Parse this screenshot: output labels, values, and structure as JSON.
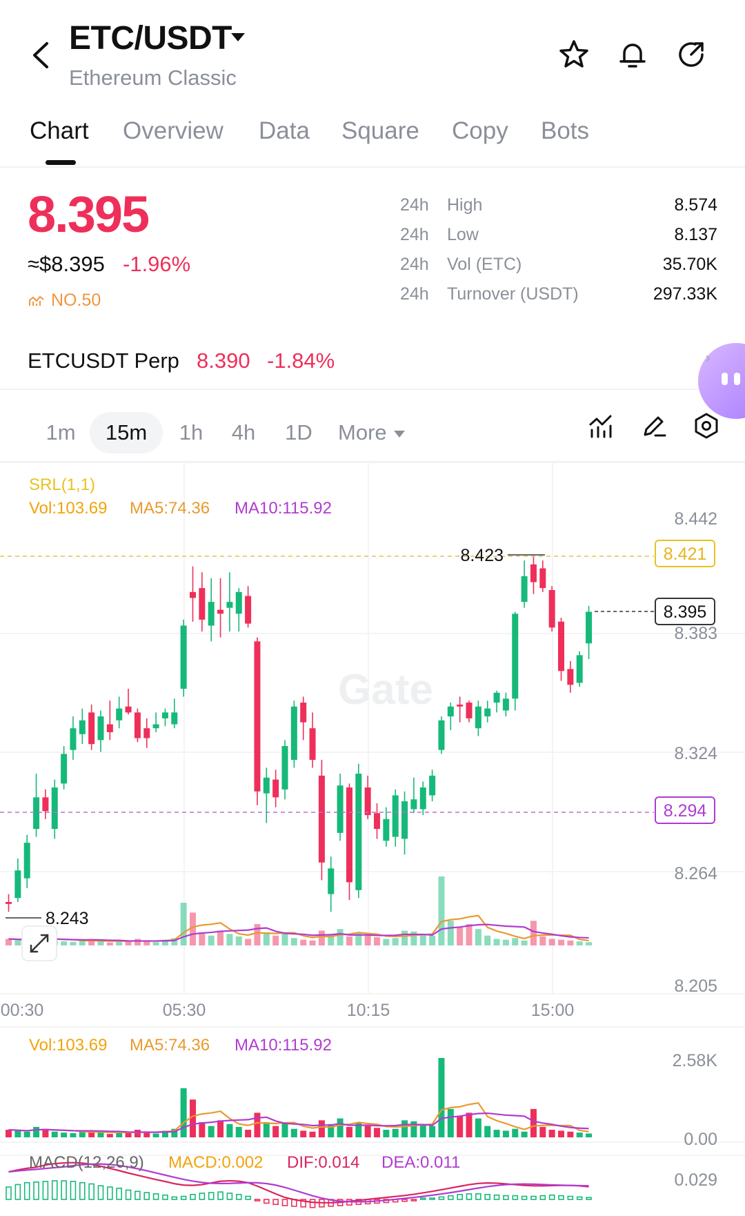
{
  "header": {
    "pair": "ETC/USDT",
    "subtitle": "Ethereum Classic",
    "icons": [
      "back-icon",
      "star-icon",
      "bell-icon",
      "share-icon"
    ]
  },
  "tabs": [
    {
      "label": "Chart",
      "active": true
    },
    {
      "label": "Overview"
    },
    {
      "label": "Data"
    },
    {
      "label": "Square"
    },
    {
      "label": "Copy"
    },
    {
      "label": "Bots"
    }
  ],
  "ticker": {
    "last_price": "8.395",
    "approx_usd": "≈$8.395",
    "change_pct": "-1.96%",
    "rank": "NO.50"
  },
  "stats": [
    {
      "prefix": "24h",
      "label": "High",
      "value": "8.574"
    },
    {
      "prefix": "24h",
      "label": "Low",
      "value": "8.137"
    },
    {
      "prefix": "24h",
      "label": "Vol (ETC)",
      "value": "35.70K"
    },
    {
      "prefix": "24h",
      "label": "Turnover (USDT)",
      "value": "297.33K"
    }
  ],
  "perp": {
    "name": "ETCUSDT Perp",
    "price": "8.390",
    "change": "-1.84%"
  },
  "intervals": [
    {
      "label": "1m"
    },
    {
      "label": "15m",
      "active": true
    },
    {
      "label": "1h"
    },
    {
      "label": "4h"
    },
    {
      "label": "1D"
    },
    {
      "label": "More"
    }
  ],
  "toolbar_icons": [
    "indicator-icon",
    "draw-icon",
    "settings-icon"
  ],
  "legends": {
    "srl": "SRL(1,1)",
    "vol": "Vol:103.69",
    "ma5": "MA5:74.36",
    "ma10": "MA10:115.92",
    "macd": "MACD(12,26,9)",
    "macd_val": "MACD:0.002",
    "dif": "DIF:0.014",
    "dea": "DEA:0.011"
  },
  "colors": {
    "up": "#16b979",
    "down": "#ee2f5a",
    "accent": "#ee2f5a",
    "srl": "#e8c21e",
    "ma10": "#b03bd1"
  },
  "chart_data": {
    "type": "candlestick",
    "price_axis_ticks": [
      "8.442",
      "8.383",
      "8.324",
      "8.264",
      "8.205"
    ],
    "time_axis_ticks": [
      "00:30",
      "05:30",
      "10:15",
      "15:00"
    ],
    "current_price_tag": "8.395",
    "srl_upper_tag": "8.421",
    "srl_lower_tag": "8.294",
    "high_marker": "8.423",
    "low_marker": "8.243",
    "volume_axis_ticks": [
      "2.58K",
      "0.00"
    ],
    "macd_axis_tick": "0.029",
    "watermark": "Gate",
    "candles": [
      {
        "o": 8.248,
        "h": 8.252,
        "l": 8.243,
        "c": 8.247
      },
      {
        "o": 8.25,
        "h": 8.27,
        "l": 8.248,
        "c": 8.264
      },
      {
        "o": 8.26,
        "h": 8.282,
        "l": 8.255,
        "c": 8.278
      },
      {
        "o": 8.285,
        "h": 8.313,
        "l": 8.281,
        "c": 8.301
      },
      {
        "o": 8.301,
        "h": 8.305,
        "l": 8.29,
        "c": 8.294
      },
      {
        "o": 8.285,
        "h": 8.31,
        "l": 8.28,
        "c": 8.306
      },
      {
        "o": 8.308,
        "h": 8.327,
        "l": 8.305,
        "c": 8.323
      },
      {
        "o": 8.325,
        "h": 8.342,
        "l": 8.32,
        "c": 8.336
      },
      {
        "o": 8.333,
        "h": 8.346,
        "l": 8.328,
        "c": 8.34
      },
      {
        "o": 8.344,
        "h": 8.348,
        "l": 8.325,
        "c": 8.328
      },
      {
        "o": 8.33,
        "h": 8.345,
        "l": 8.324,
        "c": 8.342
      },
      {
        "o": 8.338,
        "h": 8.35,
        "l": 8.33,
        "c": 8.334
      },
      {
        "o": 8.34,
        "h": 8.352,
        "l": 8.336,
        "c": 8.346
      },
      {
        "o": 8.347,
        "h": 8.356,
        "l": 8.343,
        "c": 8.344
      },
      {
        "o": 8.344,
        "h": 8.346,
        "l": 8.329,
        "c": 8.331
      },
      {
        "o": 8.336,
        "h": 8.341,
        "l": 8.326,
        "c": 8.331
      },
      {
        "o": 8.336,
        "h": 8.344,
        "l": 8.334,
        "c": 8.338
      },
      {
        "o": 8.341,
        "h": 8.346,
        "l": 8.337,
        "c": 8.344
      },
      {
        "o": 8.338,
        "h": 8.351,
        "l": 8.336,
        "c": 8.344
      },
      {
        "o": 8.356,
        "h": 8.391,
        "l": 8.352,
        "c": 8.388
      },
      {
        "o": 8.405,
        "h": 8.418,
        "l": 8.39,
        "c": 8.402
      },
      {
        "o": 8.407,
        "h": 8.415,
        "l": 8.385,
        "c": 8.391
      },
      {
        "o": 8.388,
        "h": 8.412,
        "l": 8.38,
        "c": 8.4
      },
      {
        "o": 8.396,
        "h": 8.412,
        "l": 8.382,
        "c": 8.394
      },
      {
        "o": 8.397,
        "h": 8.415,
        "l": 8.385,
        "c": 8.4
      },
      {
        "o": 8.394,
        "h": 8.407,
        "l": 8.385,
        "c": 8.405
      },
      {
        "o": 8.403,
        "h": 8.408,
        "l": 8.387,
        "c": 8.389
      },
      {
        "o": 8.38,
        "h": 8.382,
        "l": 8.297,
        "c": 8.304
      },
      {
        "o": 8.303,
        "h": 8.316,
        "l": 8.288,
        "c": 8.311
      },
      {
        "o": 8.31,
        "h": 8.315,
        "l": 8.296,
        "c": 8.301
      },
      {
        "o": 8.305,
        "h": 8.33,
        "l": 8.3,
        "c": 8.327
      },
      {
        "o": 8.32,
        "h": 8.35,
        "l": 8.316,
        "c": 8.347
      },
      {
        "o": 8.349,
        "h": 8.352,
        "l": 8.33,
        "c": 8.339
      },
      {
        "o": 8.336,
        "h": 8.344,
        "l": 8.316,
        "c": 8.32
      },
      {
        "o": 8.312,
        "h": 8.32,
        "l": 8.259,
        "c": 8.268
      },
      {
        "o": 8.252,
        "h": 8.271,
        "l": 8.243,
        "c": 8.265
      },
      {
        "o": 8.283,
        "h": 8.313,
        "l": 8.279,
        "c": 8.307
      },
      {
        "o": 8.306,
        "h": 8.308,
        "l": 8.249,
        "c": 8.258
      },
      {
        "o": 8.254,
        "h": 8.318,
        "l": 8.25,
        "c": 8.313
      },
      {
        "o": 8.306,
        "h": 8.312,
        "l": 8.29,
        "c": 8.292
      },
      {
        "o": 8.293,
        "h": 8.298,
        "l": 8.28,
        "c": 8.285
      },
      {
        "o": 8.279,
        "h": 8.296,
        "l": 8.276,
        "c": 8.29
      },
      {
        "o": 8.281,
        "h": 8.305,
        "l": 8.276,
        "c": 8.302
      },
      {
        "o": 8.28,
        "h": 8.304,
        "l": 8.272,
        "c": 8.299
      },
      {
        "o": 8.295,
        "h": 8.311,
        "l": 8.293,
        "c": 8.3
      },
      {
        "o": 8.295,
        "h": 8.309,
        "l": 8.292,
        "c": 8.306
      },
      {
        "o": 8.302,
        "h": 8.315,
        "l": 8.299,
        "c": 8.312
      },
      {
        "o": 8.325,
        "h": 8.342,
        "l": 8.323,
        "c": 8.34
      },
      {
        "o": 8.342,
        "h": 8.349,
        "l": 8.335,
        "c": 8.347
      },
      {
        "o": 8.348,
        "h": 8.352,
        "l": 8.339,
        "c": 8.347
      },
      {
        "o": 8.349,
        "h": 8.35,
        "l": 8.339,
        "c": 8.341
      },
      {
        "o": 8.336,
        "h": 8.35,
        "l": 8.332,
        "c": 8.347
      },
      {
        "o": 8.342,
        "h": 8.35,
        "l": 8.339,
        "c": 8.346
      },
      {
        "o": 8.349,
        "h": 8.355,
        "l": 8.344,
        "c": 8.354
      },
      {
        "o": 8.345,
        "h": 8.354,
        "l": 8.342,
        "c": 8.351
      },
      {
        "o": 8.351,
        "h": 8.395,
        "l": 8.345,
        "c": 8.394
      },
      {
        "o": 8.4,
        "h": 8.421,
        "l": 8.397,
        "c": 8.413
      },
      {
        "o": 8.419,
        "h": 8.423,
        "l": 8.404,
        "c": 8.41
      },
      {
        "o": 8.417,
        "h": 8.421,
        "l": 8.405,
        "c": 8.407
      },
      {
        "o": 8.406,
        "h": 8.408,
        "l": 8.385,
        "c": 8.387
      },
      {
        "o": 8.39,
        "h": 8.392,
        "l": 8.36,
        "c": 8.365
      },
      {
        "o": 8.366,
        "h": 8.37,
        "l": 8.354,
        "c": 8.358
      },
      {
        "o": 8.359,
        "h": 8.375,
        "l": 8.357,
        "c": 8.373
      },
      {
        "o": 8.379,
        "h": 8.398,
        "l": 8.371,
        "c": 8.395
      }
    ],
    "volume": [
      40,
      35,
      30,
      55,
      45,
      30,
      25,
      22,
      28,
      35,
      30,
      18,
      22,
      25,
      40,
      30,
      20,
      35,
      45,
      260,
      200,
      80,
      60,
      90,
      70,
      55,
      40,
      130,
      80,
      60,
      75,
      45,
      35,
      30,
      90,
      70,
      100,
      55,
      80,
      60,
      50,
      40,
      45,
      90,
      85,
      70,
      60,
      420,
      150,
      110,
      130,
      100,
      60,
      40,
      35,
      45,
      30,
      150,
      55,
      40,
      35,
      30,
      25,
      20
    ],
    "macd_hist": [
      20,
      24,
      27,
      28,
      29,
      30,
      30,
      29,
      27,
      25,
      22,
      20,
      18,
      15,
      13,
      11,
      9,
      7,
      4,
      5,
      8,
      10,
      11,
      12,
      10,
      8,
      5,
      -2,
      -6,
      -8,
      -10,
      -11,
      -12,
      -13,
      -12,
      -11,
      -10,
      -9,
      -8,
      -7,
      -6,
      -5,
      -4,
      -3,
      -1,
      1,
      2,
      4,
      6,
      8,
      9,
      9,
      8,
      7,
      6,
      6,
      5,
      5,
      6,
      7,
      6,
      5,
      4,
      3
    ]
  }
}
